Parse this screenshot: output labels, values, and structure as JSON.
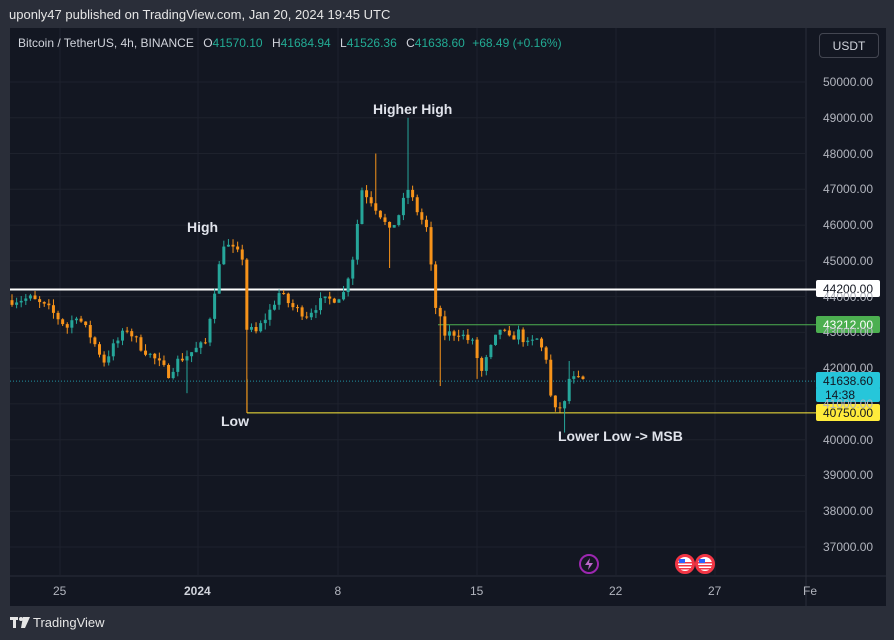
{
  "header": {
    "published_text": "uponly47 published on TradingView.com, Jan 20, 2024 19:45 UTC"
  },
  "symbol": {
    "title": "Bitcoin / TetherUS, 4h, BINANCE",
    "open_key": "O",
    "open": "41570.10",
    "high_key": "H",
    "high": "41684.94",
    "low_key": "L",
    "low": "41526.36",
    "close_key": "C",
    "close": "41638.60",
    "change": "+68.49 (+0.16%)"
  },
  "currency_button": "USDT",
  "annotations": {
    "higher_high": "Higher High",
    "high": "High",
    "low": "Low",
    "lower_low": "Lower Low -> MSB"
  },
  "price_tags": {
    "white_level": "44200.00",
    "green_level": "43212.00",
    "current_price": "41638.60",
    "countdown": "14:38",
    "yellow_level": "40750.00"
  },
  "colors": {
    "background": "#131722",
    "up": "#26a69a",
    "down": "#f7931a",
    "white_line": "#ffffff",
    "green_line": "#4caf50",
    "yellow_line": "#ffeb3b",
    "current_price_tag": "#26c6da"
  },
  "x_axis": {
    "ticks": [
      {
        "label": "25",
        "bold": false
      },
      {
        "label": "2024",
        "bold": true
      },
      {
        "label": "8",
        "bold": false
      },
      {
        "label": "15",
        "bold": false
      },
      {
        "label": "22",
        "bold": false
      },
      {
        "label": "27",
        "bold": false
      },
      {
        "label": "Fe",
        "bold": false
      }
    ]
  },
  "footer": {
    "brand": "TradingView"
  },
  "chart_data": {
    "type": "candlestick",
    "symbol": "Bitcoin / TetherUS",
    "interval": "4h",
    "exchange": "BINANCE",
    "y_ticks": [
      "50000.00",
      "49000.00",
      "48000.00",
      "47000.00",
      "46000.00",
      "45000.00",
      "44000.00",
      "43000.00",
      "42000.00",
      "41000.00",
      "40000.00",
      "39000.00",
      "38000.00",
      "37000.00"
    ],
    "ylim": [
      36400,
      51100
    ],
    "grid": true,
    "levels": [
      {
        "price": 44200,
        "color": "white"
      },
      {
        "price": 43212,
        "color": "green"
      },
      {
        "price": 40750,
        "color": "yellow"
      }
    ],
    "current_price": 41638.6,
    "annotation_prices": {
      "higher_high": 49000,
      "high": 45600,
      "low": 40750,
      "lower_low": 40300
    },
    "path_nodes": [
      {
        "t": 0,
        "p": 43900
      },
      {
        "t": 4,
        "p": 43950
      },
      {
        "t": 8,
        "p": 43650
      },
      {
        "t": 12,
        "p": 43150
      },
      {
        "t": 14,
        "p": 43500
      },
      {
        "t": 17,
        "p": 42900
      },
      {
        "t": 20,
        "p": 42200
      },
      {
        "t": 22,
        "p": 42600
      },
      {
        "t": 25,
        "p": 43100
      },
      {
        "t": 28,
        "p": 42600
      },
      {
        "t": 31,
        "p": 42250
      },
      {
        "t": 34,
        "p": 41850
      },
      {
        "t": 36,
        "p": 42200
      },
      {
        "t": 39,
        "p": 42450
      },
      {
        "t": 42,
        "p": 42700
      },
      {
        "t": 44,
        "p": 44200
      },
      {
        "t": 46,
        "p": 45500
      },
      {
        "t": 48,
        "p": 45300
      },
      {
        "t": 50,
        "p": 45100
      },
      {
        "t": 51,
        "p": 43100
      },
      {
        "t": 53,
        "p": 43000
      },
      {
        "t": 56,
        "p": 43600
      },
      {
        "t": 58,
        "p": 44100
      },
      {
        "t": 61,
        "p": 43700
      },
      {
        "t": 64,
        "p": 43500
      },
      {
        "t": 67,
        "p": 43850
      },
      {
        "t": 70,
        "p": 43950
      },
      {
        "t": 72,
        "p": 44100
      },
      {
        "t": 74,
        "p": 45100
      },
      {
        "t": 76,
        "p": 47000
      },
      {
        "t": 78,
        "p": 46700
      },
      {
        "t": 80,
        "p": 46300
      },
      {
        "t": 82,
        "p": 45800
      },
      {
        "t": 84,
        "p": 46300
      },
      {
        "t": 86,
        "p": 47000
      },
      {
        "t": 88,
        "p": 46400
      },
      {
        "t": 90,
        "p": 45900
      },
      {
        "t": 92,
        "p": 43700
      },
      {
        "t": 94,
        "p": 42950
      },
      {
        "t": 97,
        "p": 43000
      },
      {
        "t": 100,
        "p": 42700
      },
      {
        "t": 102,
        "p": 41900
      },
      {
        "t": 104,
        "p": 42550
      },
      {
        "t": 106,
        "p": 43100
      },
      {
        "t": 108,
        "p": 42800
      },
      {
        "t": 110,
        "p": 43000
      },
      {
        "t": 112,
        "p": 42650
      },
      {
        "t": 114,
        "p": 42800
      },
      {
        "t": 116,
        "p": 42300
      },
      {
        "t": 117,
        "p": 41200
      },
      {
        "t": 118,
        "p": 40800
      },
      {
        "t": 120,
        "p": 41000
      },
      {
        "t": 121,
        "p": 41700
      },
      {
        "t": 124,
        "p": 41640
      }
    ],
    "spikes": [
      {
        "t": 38,
        "p": 41300
      },
      {
        "t": 51,
        "p": 40750
      },
      {
        "t": 79,
        "p": 48000
      },
      {
        "t": 82,
        "p": 44800
      },
      {
        "t": 86,
        "p": 49000
      },
      {
        "t": 93,
        "p": 41500
      },
      {
        "t": 101,
        "p": 41700
      },
      {
        "t": 120,
        "p": 40200
      },
      {
        "t": 121,
        "p": 42200
      }
    ],
    "candle_count": 125
  }
}
